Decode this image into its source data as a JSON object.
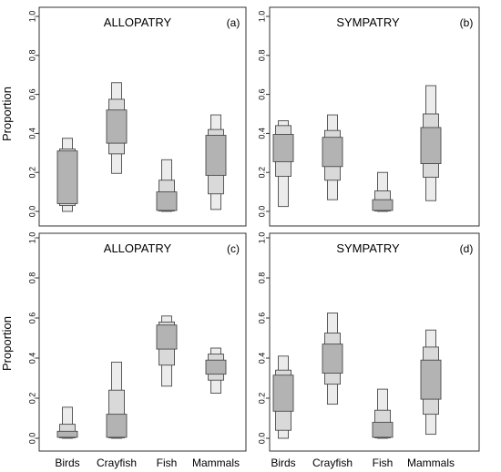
{
  "figure": {
    "ylabel": "Proportion"
  },
  "colors": {
    "outer": "#ececec",
    "middle": "#d9d9d9",
    "inner": "#b3b3b3",
    "stroke": "#4a4a4a"
  },
  "chart_data": [
    {
      "type": "box",
      "title": "ALLOPATRY",
      "panel_label": "(a)",
      "ylabel": "Proportion",
      "ylim": [
        0,
        1
      ],
      "yticks": [
        "0.0",
        "0.2",
        "0.4",
        "0.6",
        "0.8",
        "1.0"
      ],
      "categories": [
        "Birds",
        "Crayfish",
        "Fish",
        "Mammals"
      ],
      "show_xticklabels": false,
      "boxes": [
        {
          "min": 0.0,
          "q1": 0.03,
          "q2": 0.04,
          "q3": 0.31,
          "q4": 0.32,
          "max": 0.375
        },
        {
          "min": 0.195,
          "q1": 0.295,
          "q2": 0.35,
          "q3": 0.52,
          "q4": 0.575,
          "max": 0.66
        },
        {
          "min": 0.0,
          "q1": 0.002,
          "q2": 0.005,
          "q3": 0.1,
          "q4": 0.16,
          "max": 0.265
        },
        {
          "min": 0.01,
          "q1": 0.09,
          "q2": 0.185,
          "q3": 0.39,
          "q4": 0.42,
          "max": 0.495
        }
      ]
    },
    {
      "type": "box",
      "title": "SYMPATRY",
      "panel_label": "(b)",
      "ylabel": "",
      "ylim": [
        0,
        1
      ],
      "yticks": [
        "0.0",
        "0.2",
        "0.4",
        "0.6",
        "0.8",
        "1.0"
      ],
      "categories": [
        "Birds",
        "Crayfish",
        "Fish",
        "Mammals"
      ],
      "show_xticklabels": false,
      "boxes": [
        {
          "min": 0.025,
          "q1": 0.18,
          "q2": 0.255,
          "q3": 0.395,
          "q4": 0.44,
          "max": 0.465
        },
        {
          "min": 0.06,
          "q1": 0.16,
          "q2": 0.23,
          "q3": 0.38,
          "q4": 0.415,
          "max": 0.495
        },
        {
          "min": 0.0,
          "q1": 0.002,
          "q2": 0.005,
          "q3": 0.06,
          "q4": 0.105,
          "max": 0.2
        },
        {
          "min": 0.055,
          "q1": 0.175,
          "q2": 0.245,
          "q3": 0.43,
          "q4": 0.5,
          "max": 0.645
        }
      ]
    },
    {
      "type": "box",
      "title": "ALLOPATRY",
      "panel_label": "(c)",
      "ylabel": "Proportion",
      "ylim": [
        0,
        1
      ],
      "yticks": [
        "0.0",
        "0.2",
        "0.4",
        "0.6",
        "0.8",
        "1.0"
      ],
      "categories": [
        "Birds",
        "Crayfish",
        "Fish",
        "Mammals"
      ],
      "show_xticklabels": true,
      "boxes": [
        {
          "min": 0.0,
          "q1": 0.002,
          "q2": 0.005,
          "q3": 0.035,
          "q4": 0.07,
          "max": 0.155
        },
        {
          "min": 0.0,
          "q1": 0.002,
          "q2": 0.005,
          "q3": 0.12,
          "q4": 0.24,
          "max": 0.38
        },
        {
          "min": 0.26,
          "q1": 0.365,
          "q2": 0.445,
          "q3": 0.565,
          "q4": 0.58,
          "max": 0.61
        },
        {
          "min": 0.225,
          "q1": 0.29,
          "q2": 0.32,
          "q3": 0.39,
          "q4": 0.42,
          "max": 0.45
        }
      ]
    },
    {
      "type": "box",
      "title": "SYMPATRY",
      "panel_label": "(d)",
      "ylabel": "",
      "ylim": [
        0,
        1
      ],
      "yticks": [
        "0.0",
        "0.2",
        "0.4",
        "0.6",
        "0.8",
        "1.0"
      ],
      "categories": [
        "Birds",
        "Crayfish",
        "Fish",
        "Mammals"
      ],
      "show_xticklabels": true,
      "boxes": [
        {
          "min": 0.0,
          "q1": 0.04,
          "q2": 0.135,
          "q3": 0.315,
          "q4": 0.34,
          "max": 0.41
        },
        {
          "min": 0.17,
          "q1": 0.27,
          "q2": 0.325,
          "q3": 0.47,
          "q4": 0.525,
          "max": 0.625
        },
        {
          "min": 0.0,
          "q1": 0.002,
          "q2": 0.005,
          "q3": 0.08,
          "q4": 0.14,
          "max": 0.245
        },
        {
          "min": 0.02,
          "q1": 0.12,
          "q2": 0.195,
          "q3": 0.39,
          "q4": 0.455,
          "max": 0.54
        }
      ]
    }
  ]
}
